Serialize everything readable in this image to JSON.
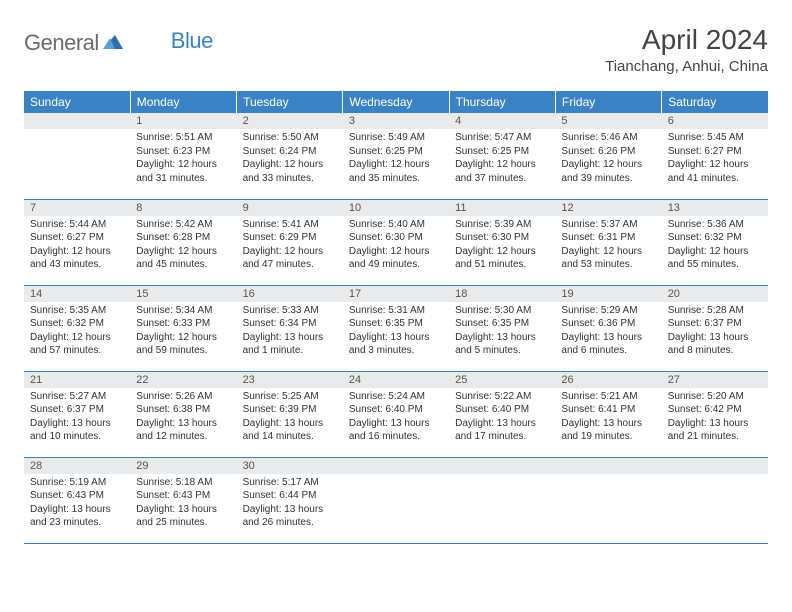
{
  "brand": {
    "word1": "General",
    "word2": "Blue"
  },
  "title": "April 2024",
  "location": "Tianchang, Anhui, China",
  "colors": {
    "header_bg": "#3b82c4",
    "header_text": "#ffffff",
    "daynum_bg": "#e9eaeb",
    "row_border": "#3b82c4",
    "body_text": "#333333",
    "logo_gray": "#6b6b6b",
    "logo_blue": "#3b82c4"
  },
  "typography": {
    "title_fontsize": 28,
    "location_fontsize": 15,
    "dayheader_fontsize": 12,
    "daynum_fontsize": 11,
    "cell_fontsize": 10
  },
  "weekdays": [
    "Sunday",
    "Monday",
    "Tuesday",
    "Wednesday",
    "Thursday",
    "Friday",
    "Saturday"
  ],
  "weeks": [
    [
      null,
      {
        "n": "1",
        "sr": "5:51 AM",
        "ss": "6:23 PM",
        "dl": "12 hours and 31 minutes."
      },
      {
        "n": "2",
        "sr": "5:50 AM",
        "ss": "6:24 PM",
        "dl": "12 hours and 33 minutes."
      },
      {
        "n": "3",
        "sr": "5:49 AM",
        "ss": "6:25 PM",
        "dl": "12 hours and 35 minutes."
      },
      {
        "n": "4",
        "sr": "5:47 AM",
        "ss": "6:25 PM",
        "dl": "12 hours and 37 minutes."
      },
      {
        "n": "5",
        "sr": "5:46 AM",
        "ss": "6:26 PM",
        "dl": "12 hours and 39 minutes."
      },
      {
        "n": "6",
        "sr": "5:45 AM",
        "ss": "6:27 PM",
        "dl": "12 hours and 41 minutes."
      }
    ],
    [
      {
        "n": "7",
        "sr": "5:44 AM",
        "ss": "6:27 PM",
        "dl": "12 hours and 43 minutes."
      },
      {
        "n": "8",
        "sr": "5:42 AM",
        "ss": "6:28 PM",
        "dl": "12 hours and 45 minutes."
      },
      {
        "n": "9",
        "sr": "5:41 AM",
        "ss": "6:29 PM",
        "dl": "12 hours and 47 minutes."
      },
      {
        "n": "10",
        "sr": "5:40 AM",
        "ss": "6:30 PM",
        "dl": "12 hours and 49 minutes."
      },
      {
        "n": "11",
        "sr": "5:39 AM",
        "ss": "6:30 PM",
        "dl": "12 hours and 51 minutes."
      },
      {
        "n": "12",
        "sr": "5:37 AM",
        "ss": "6:31 PM",
        "dl": "12 hours and 53 minutes."
      },
      {
        "n": "13",
        "sr": "5:36 AM",
        "ss": "6:32 PM",
        "dl": "12 hours and 55 minutes."
      }
    ],
    [
      {
        "n": "14",
        "sr": "5:35 AM",
        "ss": "6:32 PM",
        "dl": "12 hours and 57 minutes."
      },
      {
        "n": "15",
        "sr": "5:34 AM",
        "ss": "6:33 PM",
        "dl": "12 hours and 59 minutes."
      },
      {
        "n": "16",
        "sr": "5:33 AM",
        "ss": "6:34 PM",
        "dl": "13 hours and 1 minute."
      },
      {
        "n": "17",
        "sr": "5:31 AM",
        "ss": "6:35 PM",
        "dl": "13 hours and 3 minutes."
      },
      {
        "n": "18",
        "sr": "5:30 AM",
        "ss": "6:35 PM",
        "dl": "13 hours and 5 minutes."
      },
      {
        "n": "19",
        "sr": "5:29 AM",
        "ss": "6:36 PM",
        "dl": "13 hours and 6 minutes."
      },
      {
        "n": "20",
        "sr": "5:28 AM",
        "ss": "6:37 PM",
        "dl": "13 hours and 8 minutes."
      }
    ],
    [
      {
        "n": "21",
        "sr": "5:27 AM",
        "ss": "6:37 PM",
        "dl": "13 hours and 10 minutes."
      },
      {
        "n": "22",
        "sr": "5:26 AM",
        "ss": "6:38 PM",
        "dl": "13 hours and 12 minutes."
      },
      {
        "n": "23",
        "sr": "5:25 AM",
        "ss": "6:39 PM",
        "dl": "13 hours and 14 minutes."
      },
      {
        "n": "24",
        "sr": "5:24 AM",
        "ss": "6:40 PM",
        "dl": "13 hours and 16 minutes."
      },
      {
        "n": "25",
        "sr": "5:22 AM",
        "ss": "6:40 PM",
        "dl": "13 hours and 17 minutes."
      },
      {
        "n": "26",
        "sr": "5:21 AM",
        "ss": "6:41 PM",
        "dl": "13 hours and 19 minutes."
      },
      {
        "n": "27",
        "sr": "5:20 AM",
        "ss": "6:42 PM",
        "dl": "13 hours and 21 minutes."
      }
    ],
    [
      {
        "n": "28",
        "sr": "5:19 AM",
        "ss": "6:43 PM",
        "dl": "13 hours and 23 minutes."
      },
      {
        "n": "29",
        "sr": "5:18 AM",
        "ss": "6:43 PM",
        "dl": "13 hours and 25 minutes."
      },
      {
        "n": "30",
        "sr": "5:17 AM",
        "ss": "6:44 PM",
        "dl": "13 hours and 26 minutes."
      },
      null,
      null,
      null,
      null
    ]
  ],
  "labels": {
    "sunrise": "Sunrise:",
    "sunset": "Sunset:",
    "daylight": "Daylight:"
  }
}
